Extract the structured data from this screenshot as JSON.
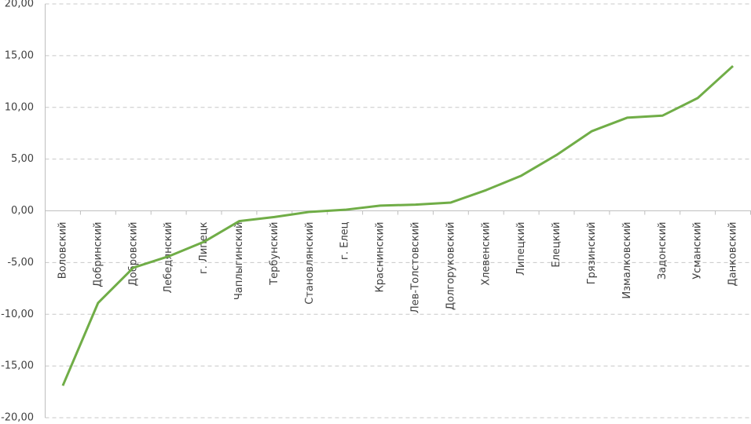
{
  "chart_data": {
    "type": "line",
    "categories": [
      "Воловский",
      "Добринский",
      "Добровский",
      "Лебедянский",
      "г. Липецк",
      "Чаплыгинский",
      "Тербунский",
      "Становлянский",
      "г. Елец",
      "Краснинский",
      "Лев-Толстовский",
      "Долгоруковский",
      "Хлевенский",
      "Липецкий",
      "Елецкий",
      "Грязинский",
      "Измалковский",
      "Задонский",
      "Усманский",
      "Данковский"
    ],
    "series": [
      {
        "color": "#70ad47",
        "values": [
          -16.9,
          -8.9,
          -5.5,
          -4.4,
          -3.0,
          -1.0,
          -0.6,
          -0.1,
          0.1,
          0.5,
          0.6,
          0.8,
          2.0,
          3.4,
          5.4,
          7.7,
          9.0,
          9.2,
          10.9,
          14.0
        ]
      }
    ],
    "ylim": [
      -20,
      20
    ],
    "yticks": [
      {
        "value": -20,
        "label": "-20,00"
      },
      {
        "value": -15,
        "label": "-15,00"
      },
      {
        "value": -10,
        "label": "-10,00"
      },
      {
        "value": -5,
        "label": "-5,00"
      },
      {
        "value": 0,
        "label": "0,00"
      },
      {
        "value": 5,
        "label": "5,00"
      },
      {
        "value": 10,
        "label": "10,00"
      },
      {
        "value": 15,
        "label": "15,00"
      },
      {
        "value": 20,
        "label": "20,00"
      }
    ],
    "grid": true
  }
}
